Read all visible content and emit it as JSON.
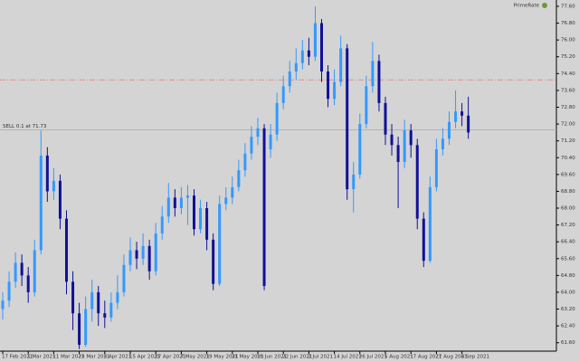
{
  "chart_data": {
    "type": "candlestick",
    "watermark": "PrimeRate",
    "categories": [
      "17 Feb 2021",
      null,
      null,
      null,
      "1 Mar 2021",
      null,
      null,
      null,
      "11 Mar 2021",
      null,
      null,
      null,
      "23 Mar 2021",
      null,
      null,
      null,
      "5 Apr 2021",
      null,
      null,
      null,
      "15 Apr 2021",
      null,
      null,
      null,
      "27 Apr 2021",
      null,
      null,
      null,
      "7 May 2021",
      null,
      null,
      null,
      "19 May 2021",
      null,
      null,
      null,
      "31 May 2021",
      null,
      null,
      null,
      "10 Jun 2021",
      null,
      null,
      null,
      "22 Jun 2021",
      null,
      null,
      null,
      "2 Jul 2021",
      null,
      null,
      null,
      "14 Jul 2021",
      null,
      null,
      null,
      "26 Jul 2021",
      null,
      null,
      null,
      "5 Aug 2021",
      null,
      null,
      null,
      "17 Aug 2021",
      null,
      null,
      null,
      "27 Aug 2021",
      null,
      null,
      null,
      "8 Sep 2021",
      null
    ],
    "open": [
      63.2,
      63.6,
      64.5,
      65.4,
      64.8,
      64.0,
      66.0,
      70.5,
      68.8,
      69.3,
      67.5,
      64.5,
      63.0,
      61.5,
      63.2,
      64.0,
      63.0,
      62.8,
      63.5,
      64.0,
      65.3,
      66.0,
      65.6,
      66.2,
      65.0,
      66.8,
      67.6,
      68.5,
      68.0,
      68.5,
      68.6,
      67.0,
      68.0,
      66.5,
      64.4,
      68.2,
      68.5,
      69.0,
      69.8,
      70.6,
      71.4,
      71.8,
      70.8,
      71.5,
      73.0,
      73.8,
      74.5,
      74.9,
      75.5,
      75.2,
      76.8,
      74.5,
      73.2,
      74.0,
      75.6,
      68.9,
      69.6,
      72.0,
      73.8,
      75.0,
      73.0,
      71.5,
      71.0,
      70.2,
      71.7,
      71.0,
      67.5,
      65.5,
      69.0,
      70.8,
      71.3,
      72.1,
      72.6,
      72.4
    ],
    "high": [
      64.0,
      65.0,
      65.9,
      65.8,
      65.2,
      66.5,
      71.7,
      70.9,
      69.9,
      69.6,
      67.9,
      65.0,
      63.5,
      63.8,
      64.6,
      64.3,
      63.6,
      64.0,
      64.8,
      65.8,
      66.6,
      66.4,
      66.8,
      66.5,
      67.3,
      68.1,
      69.2,
      68.9,
      69.0,
      69.1,
      68.9,
      68.4,
      68.3,
      66.8,
      68.6,
      69.0,
      69.5,
      70.3,
      71.1,
      71.9,
      72.3,
      72.0,
      72.0,
      73.5,
      74.3,
      75.0,
      75.6,
      76.0,
      76.1,
      77.6,
      77.0,
      74.8,
      74.6,
      76.2,
      75.8,
      70.2,
      72.5,
      74.3,
      75.9,
      75.3,
      73.3,
      72.0,
      71.4,
      72.2,
      72.0,
      71.3,
      67.8,
      69.5,
      71.3,
      71.8,
      72.6,
      73.6,
      73.0,
      73.3
    ],
    "low": [
      62.7,
      63.3,
      64.2,
      64.3,
      63.5,
      63.8,
      65.8,
      68.3,
      68.4,
      67.0,
      63.9,
      62.2,
      61.3,
      61.4,
      62.6,
      62.4,
      62.3,
      62.6,
      63.2,
      63.8,
      65.0,
      65.1,
      65.3,
      64.6,
      64.8,
      66.5,
      67.3,
      67.6,
      67.7,
      67.2,
      66.7,
      66.8,
      66.0,
      64.1,
      64.3,
      67.9,
      68.2,
      68.8,
      69.5,
      70.3,
      71.0,
      64.1,
      70.4,
      71.2,
      72.7,
      73.5,
      74.1,
      74.6,
      74.8,
      75.0,
      74.0,
      72.8,
      72.9,
      73.8,
      68.4,
      67.8,
      69.4,
      71.8,
      73.5,
      72.6,
      71.0,
      70.5,
      68.0,
      69.9,
      70.4,
      67.0,
      65.2,
      65.4,
      68.8,
      70.5,
      71.0,
      71.8,
      71.9,
      71.3
    ],
    "close": [
      63.6,
      64.5,
      65.4,
      64.8,
      64.0,
      66.0,
      70.5,
      68.8,
      69.3,
      67.5,
      64.5,
      63.0,
      61.5,
      63.2,
      64.0,
      63.0,
      62.8,
      63.5,
      64.0,
      65.3,
      66.0,
      65.6,
      66.2,
      65.0,
      66.8,
      67.6,
      68.5,
      68.0,
      68.5,
      68.6,
      67.0,
      68.0,
      66.5,
      64.4,
      68.2,
      68.5,
      69.0,
      69.8,
      70.6,
      71.4,
      71.8,
      64.3,
      71.5,
      73.0,
      73.8,
      74.5,
      74.9,
      75.5,
      75.2,
      76.8,
      74.5,
      73.2,
      74.0,
      75.6,
      68.9,
      69.6,
      72.0,
      73.8,
      75.0,
      73.0,
      71.5,
      71.0,
      70.2,
      71.7,
      71.0,
      67.5,
      65.5,
      69.0,
      70.8,
      71.3,
      72.1,
      72.6,
      72.4,
      71.6
    ],
    "up_color": "#3399ff",
    "down_color": "#10109a",
    "ylim": [
      61.2,
      77.9
    ],
    "yticks": [
      {
        "value": 61.6,
        "label": "61.60"
      },
      {
        "value": 62.4,
        "label": "62.40"
      },
      {
        "value": 63.2,
        "label": "63.20"
      },
      {
        "value": 64.0,
        "label": "64.00"
      },
      {
        "value": 64.8,
        "label": "64.80"
      },
      {
        "value": 65.6,
        "label": "65.60"
      },
      {
        "value": 66.4,
        "label": "66.40"
      },
      {
        "value": 67.2,
        "label": "67.20"
      },
      {
        "value": 68.0,
        "label": "68.00"
      },
      {
        "value": 68.8,
        "label": "68.80"
      },
      {
        "value": 69.6,
        "label": "69.60"
      },
      {
        "value": 70.4,
        "label": "70.40"
      },
      {
        "value": 71.2,
        "label": "71.20"
      },
      {
        "value": 72.0,
        "label": "72.00"
      },
      {
        "value": 72.8,
        "label": "72.80"
      },
      {
        "value": 73.6,
        "label": "73.60"
      },
      {
        "value": 74.4,
        "label": "74.40"
      },
      {
        "value": 75.2,
        "label": "75.20"
      },
      {
        "value": 76.0,
        "label": "76.00"
      },
      {
        "value": 76.8,
        "label": "76.80"
      },
      {
        "value": 77.6,
        "label": "77.60"
      }
    ],
    "levels": [
      {
        "value": 74.1,
        "color": "#e07a7a",
        "style": "dashdot"
      },
      {
        "value": 71.73,
        "label": "SELL 0.1 at 71.73",
        "color": "#a8a8a8",
        "style": "solid"
      }
    ]
  }
}
